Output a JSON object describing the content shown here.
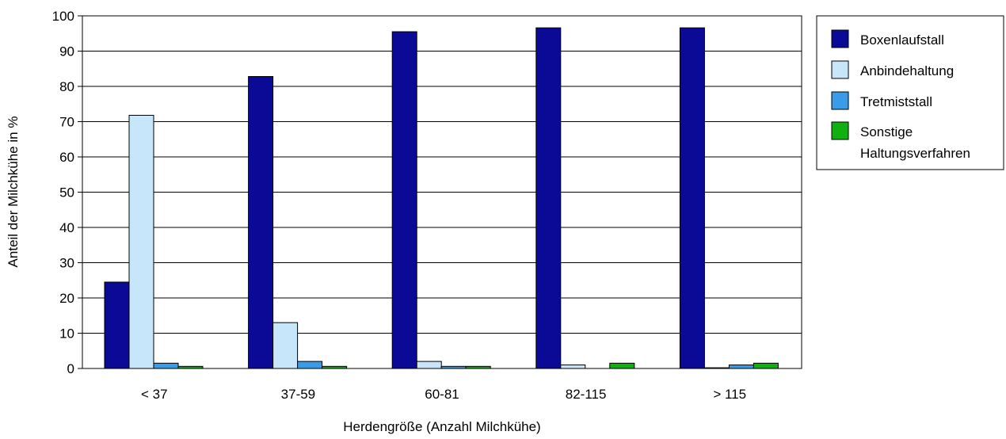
{
  "chart_data": {
    "type": "bar",
    "title": "",
    "xlabel": "Herdengröße (Anzahl Milchkühe)",
    "ylabel": "Anteil der Milchkühe in %",
    "ylim": [
      0,
      100
    ],
    "yticks": [
      "0",
      "10",
      "20",
      "30",
      "40",
      "50",
      "60",
      "70",
      "80",
      "90",
      "100"
    ],
    "grid": true,
    "legend_position": "right",
    "categories": [
      "< 37",
      "37-59",
      "60-81",
      "82-115",
      "> 115"
    ],
    "series": [
      {
        "name": "Boxenlaufstall",
        "color": "#0a0a96",
        "values": [
          24.5,
          82.8,
          95.5,
          96.6,
          96.6
        ]
      },
      {
        "name": "Anbindehaltung",
        "color": "#c7e6fa",
        "values": [
          71.8,
          13.0,
          2.0,
          1.0,
          0.2
        ]
      },
      {
        "name": "Tretmiststall",
        "color": "#3a9ce8",
        "values": [
          1.5,
          2.0,
          0.6,
          0.0,
          1.0
        ]
      },
      {
        "name": "Sonstige Haltungsverfahren",
        "color": "#10b010",
        "values": [
          0.6,
          0.6,
          0.6,
          1.5,
          1.5
        ]
      }
    ],
    "legend": [
      {
        "lines": [
          "Boxenlaufstall"
        ]
      },
      {
        "lines": [
          "Anbindehaltung"
        ]
      },
      {
        "lines": [
          "Tretmiststall"
        ]
      },
      {
        "lines": [
          "Sonstige",
          "Haltungsverfahren"
        ]
      }
    ]
  }
}
